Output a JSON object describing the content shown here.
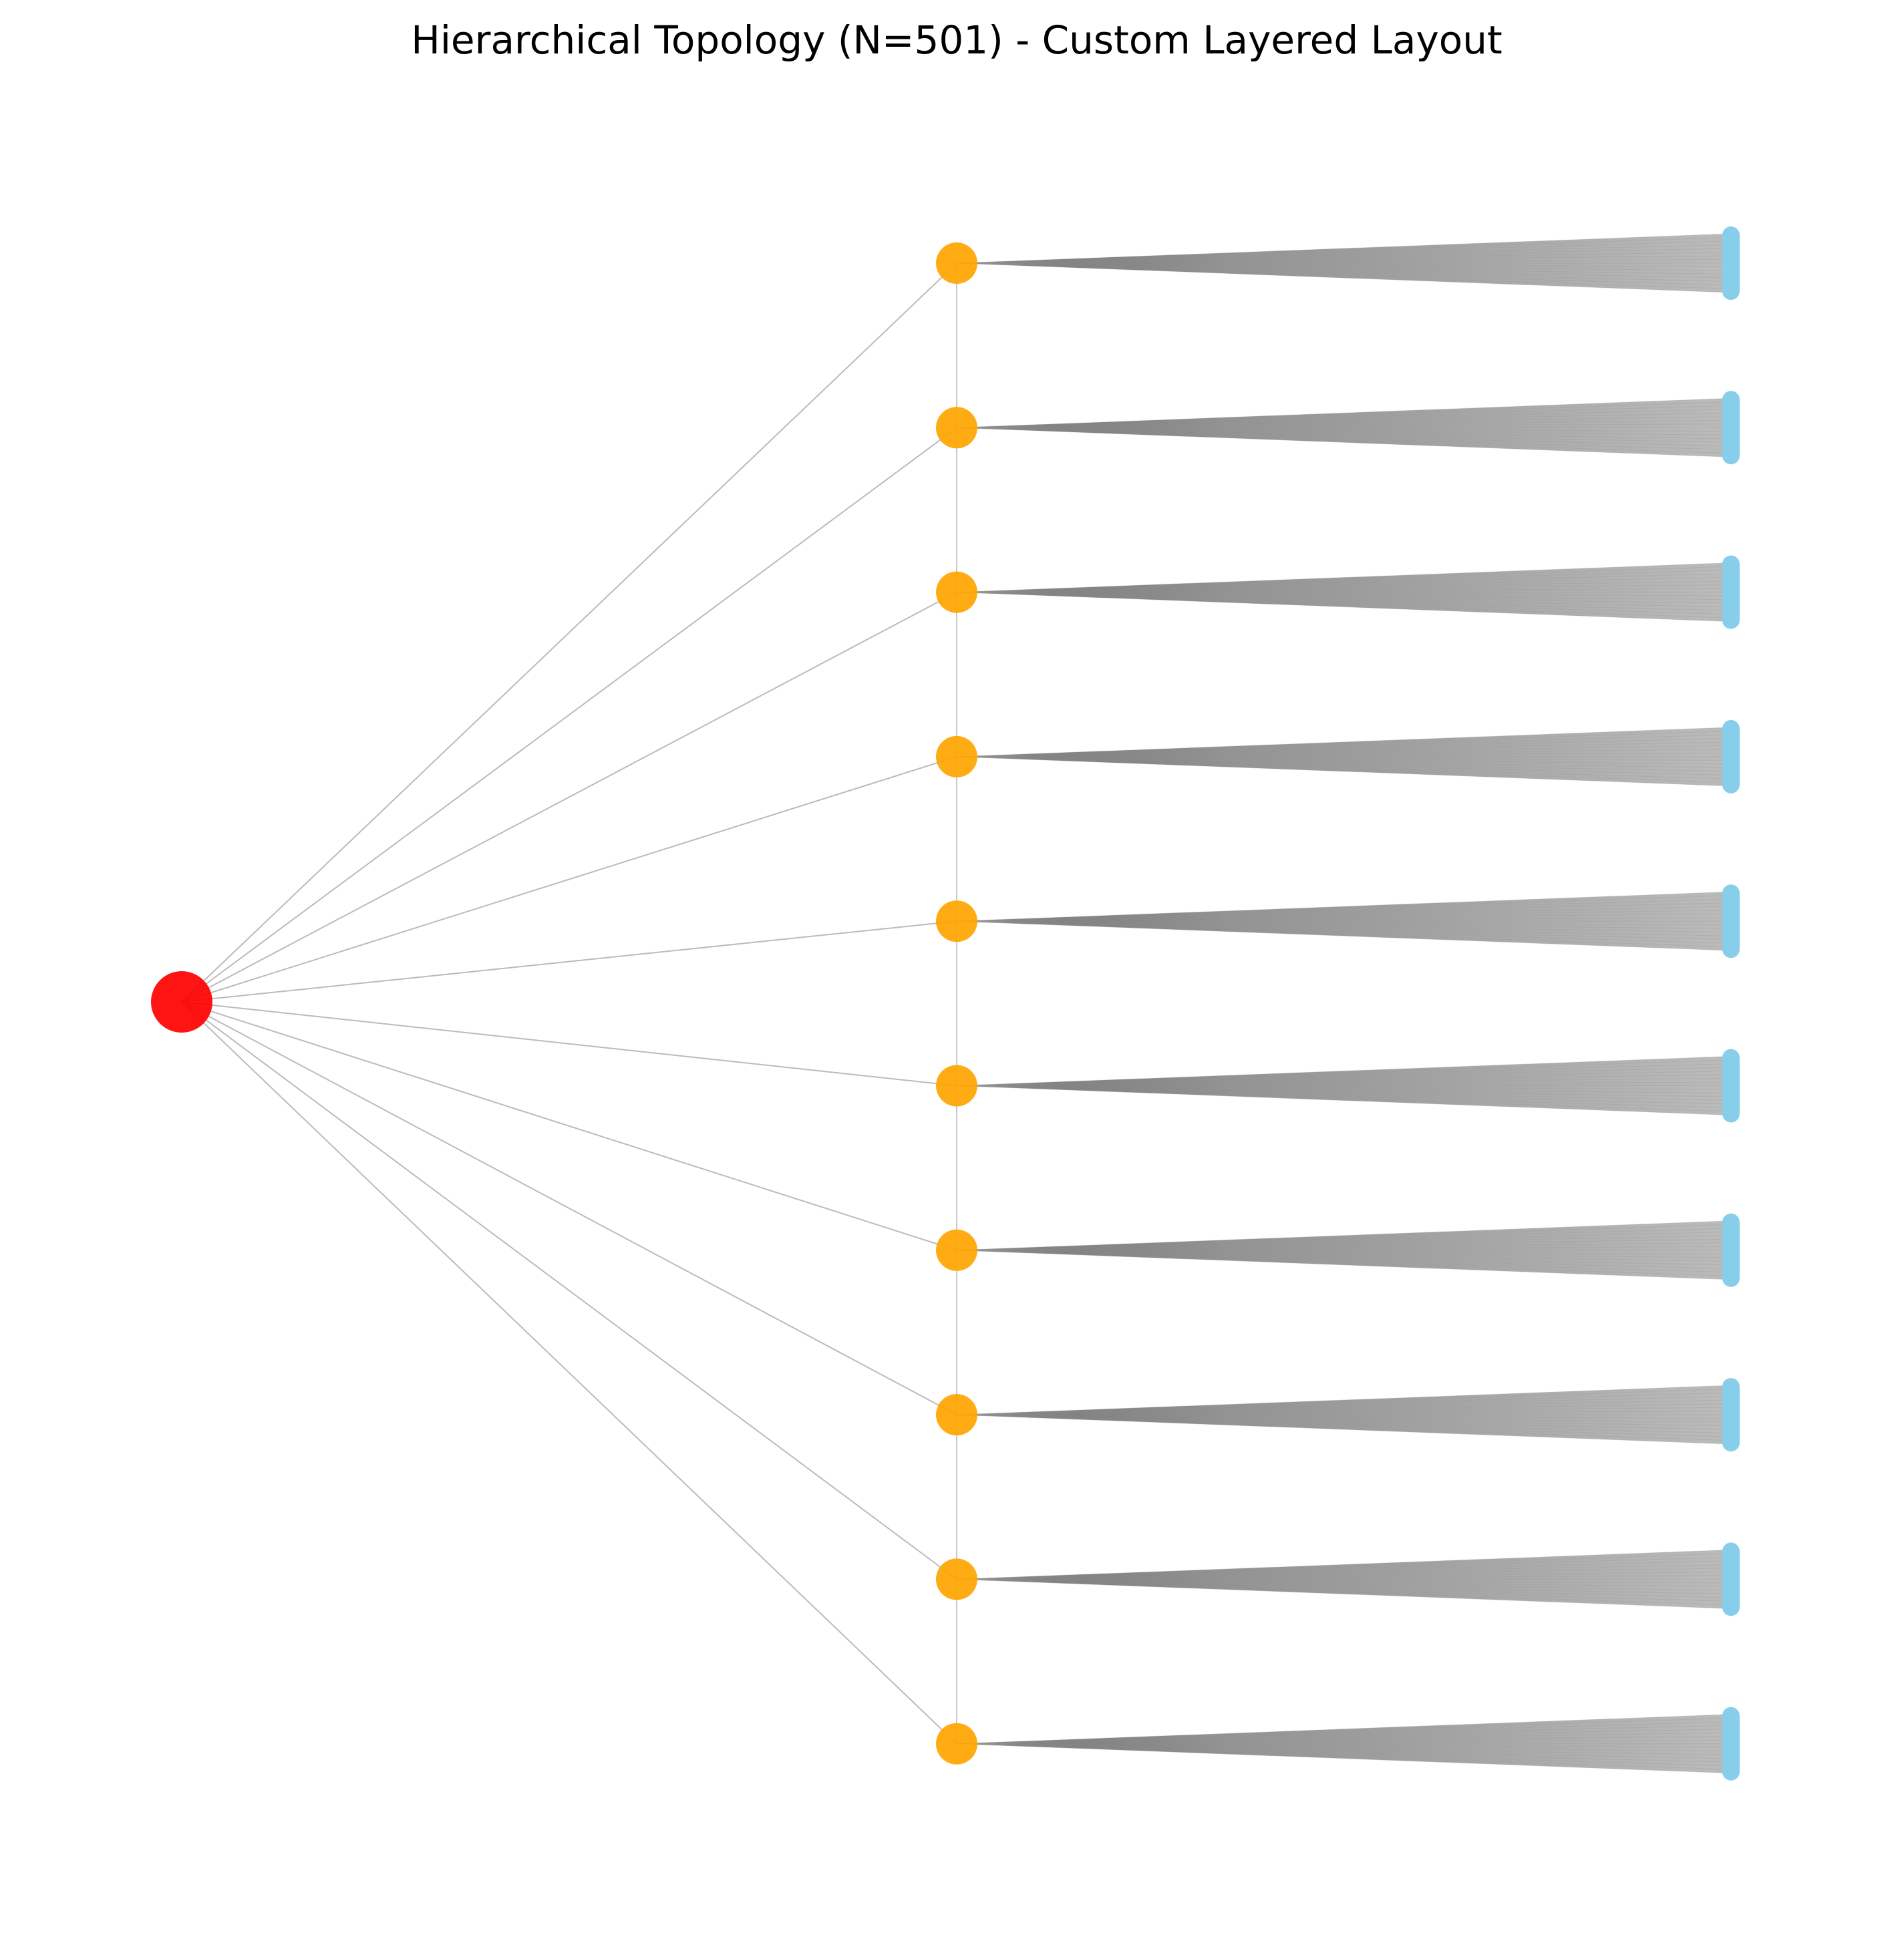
{
  "title": "Hierarchical Topology (N=501) - Custom Layered Layout",
  "diagram": {
    "layout": "hierarchical left-to-right layered",
    "node_count": 501,
    "root_count": 1,
    "hub_count": 10,
    "leaves_per_hub": 49,
    "colors": {
      "root": "#ff0000",
      "hub": "#ffa500",
      "leaf": "#87ceeb",
      "root_edge": "#bbbbbb",
      "hub_edge_dark": "#666666",
      "hub_edge_light": "#b3b3b3",
      "hub_spine": "#c8c8c8"
    },
    "icons": {
      "root": "circle",
      "hub": "circle",
      "leaf": "bar"
    }
  }
}
